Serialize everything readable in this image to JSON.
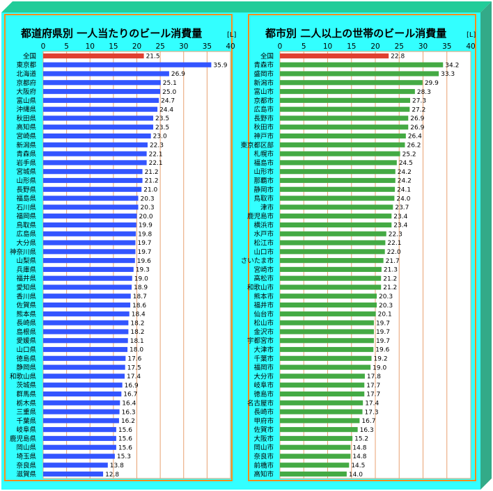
{
  "colors": {
    "background": "#33ffff",
    "border": "#ff8c1a",
    "right_face": "#33aa88",
    "top_face": "#22cc99",
    "grid": "#e8a070",
    "plot_bg": "#ffffff",
    "highlight": "#e04030",
    "left_bar": "#3355ff",
    "right_bar": "#44aa44"
  },
  "chart_data": [
    {
      "type": "bar",
      "orientation": "horizontal",
      "title": "都道府県別 一人当たりのビール消費量",
      "unit": "[L]",
      "xlim": [
        0,
        40
      ],
      "ticks": [
        "0",
        "5",
        "10",
        "15",
        "20",
        "25",
        "30",
        "35",
        "40"
      ],
      "grid": true,
      "highlight_category": "全国",
      "categories": [
        "全国",
        "東京都",
        "北海道",
        "京都府",
        "大阪府",
        "富山県",
        "沖縄県",
        "秋田県",
        "高知県",
        "宮崎県",
        "新潟県",
        "青森県",
        "岩手県",
        "宮城県",
        "山形県",
        "長野県",
        "福島県",
        "石川県",
        "福岡県",
        "鳥取県",
        "広島県",
        "大分県",
        "神奈川県",
        "山梨県",
        "兵庫県",
        "福井県",
        "愛知県",
        "香川県",
        "佐賀県",
        "熊本県",
        "長崎県",
        "島根県",
        "愛媛県",
        "山口県",
        "徳島県",
        "静岡県",
        "和歌山県",
        "茨城県",
        "群馬県",
        "栃木県",
        "三重県",
        "千葉県",
        "岐阜県",
        "鹿児島県",
        "岡山県",
        "埼玉県",
        "奈良県",
        "滋賀県"
      ],
      "values": [
        21.5,
        35.9,
        26.9,
        25.1,
        25.0,
        24.7,
        24.4,
        23.5,
        23.5,
        23.0,
        22.3,
        22.1,
        22.1,
        21.2,
        21.2,
        21.0,
        20.3,
        20.3,
        20.0,
        19.9,
        19.8,
        19.7,
        19.7,
        19.6,
        19.3,
        19.0,
        18.9,
        18.7,
        18.6,
        18.4,
        18.2,
        18.2,
        18.1,
        18.0,
        17.6,
        17.5,
        17.4,
        16.9,
        16.7,
        16.4,
        16.3,
        16.2,
        15.6,
        15.6,
        15.6,
        15.3,
        13.8,
        12.8
      ],
      "value_labels": [
        "21.5",
        "35.9",
        "26.9",
        "25.1",
        "25.0",
        "24.7",
        "24.4",
        "23.5",
        "23.5",
        "23.0",
        "22.3",
        "22.1",
        "22.1",
        "21.2",
        "21.2",
        "21.0",
        "20.3",
        "20.3",
        "20.0",
        "19.9",
        "19.8",
        "19.7",
        "19.7",
        "19.6",
        "19.3",
        "19.0",
        "18.9",
        "18.7",
        "18.6",
        "18.4",
        "18.2",
        "18.2",
        "18.1",
        "18.0",
        "17.6",
        "17.5",
        "17.4",
        "16.9",
        "16.7",
        "16.4",
        "16.3",
        "16.2",
        "15.6",
        "15.6",
        "15.6",
        "15.3",
        "13.8",
        "12.8"
      ]
    },
    {
      "type": "bar",
      "orientation": "horizontal",
      "title": "都市別 二人以上の世帯のビール消費量",
      "unit": "[L]",
      "xlim": [
        0,
        40
      ],
      "ticks": [
        "0",
        "5",
        "10",
        "15",
        "20",
        "25",
        "30",
        "35",
        "40"
      ],
      "grid": true,
      "highlight_category": "全国",
      "categories": [
        "全国",
        "青森市",
        "盛岡市",
        "新潟市",
        "富山市",
        "京都市",
        "広島市",
        "長野市",
        "秋田市",
        "神戸市",
        "東京都区部",
        "札幌市",
        "福島市",
        "山形市",
        "那覇市",
        "静岡市",
        "鳥取市",
        "津市",
        "鹿児島市",
        "横浜市",
        "水戸市",
        "松江市",
        "山口市",
        "さいたま市",
        "宮崎市",
        "高松市",
        "和歌山市",
        "熊本市",
        "福井市",
        "仙台市",
        "松山市",
        "金沢市",
        "宇都宮市",
        "大津市",
        "千葉市",
        "福岡市",
        "大分市",
        "岐阜市",
        "徳島市",
        "名古屋市",
        "長崎市",
        "甲府市",
        "佐賀市",
        "大阪市",
        "岡山市",
        "奈良市",
        "前橋市",
        "高知市"
      ],
      "values": [
        22.8,
        34.2,
        33.3,
        29.9,
        28.3,
        27.3,
        27.2,
        26.9,
        26.9,
        26.4,
        26.2,
        25.2,
        24.5,
        24.2,
        24.2,
        24.1,
        24.0,
        23.7,
        23.4,
        23.4,
        22.3,
        22.1,
        22.0,
        21.7,
        21.3,
        21.2,
        21.2,
        20.3,
        20.3,
        20.1,
        19.7,
        19.7,
        19.7,
        19.6,
        19.2,
        19.0,
        17.8,
        17.7,
        17.7,
        17.4,
        17.3,
        16.7,
        16.3,
        15.2,
        14.8,
        14.8,
        14.5,
        14.0
      ],
      "value_labels": [
        "22.8",
        "34.2",
        "33.3",
        "29.9",
        "28.3",
        "27.3",
        "27.2",
        "26.9",
        "26.9",
        "26.4",
        "26.2",
        "25.2",
        "24.5",
        "24.2",
        "24.2",
        "24.1",
        "24.0",
        "23.7",
        "23.4",
        "23.4",
        "22.3",
        "22.1",
        "22.0",
        "21.7",
        "21.3",
        "21.2",
        "21.2",
        "20.3",
        "20.3",
        "20.1",
        "19.7",
        "19.7",
        "19.7",
        "19.6",
        "19.2",
        "19.0",
        "17.8",
        "17.7",
        "17.7",
        "17.4",
        "17.3",
        "16.7",
        "16.3",
        "15.2",
        "14.8",
        "14.8",
        "14.5",
        "14.0"
      ]
    }
  ]
}
